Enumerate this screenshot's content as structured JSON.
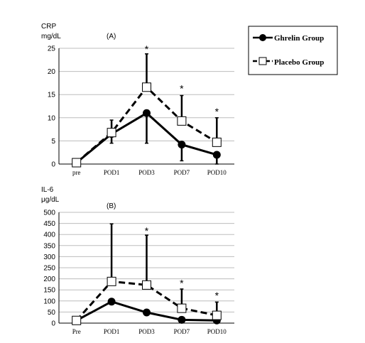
{
  "legend": {
    "entries": [
      {
        "label": "Ghrelin Group",
        "marker": "filled-circle",
        "line": "solid"
      },
      {
        "label": "Placebo Group",
        "marker": "open-square",
        "line": "dashed"
      }
    ]
  },
  "chart_data": [
    {
      "type": "line",
      "panel": "(A)",
      "ylabel_lines": [
        "CRP",
        "mg/dL"
      ],
      "categories": [
        "pre",
        "POD1",
        "POD3",
        "POD7",
        "POD10"
      ],
      "ylim": [
        0,
        25
      ],
      "yticks": [
        0,
        5,
        10,
        15,
        20,
        25
      ],
      "grid": "horizontal",
      "series": [
        {
          "name": "Ghrelin Group",
          "values": [
            0.3,
            6.5,
            11,
            4.2,
            2.0
          ],
          "err_low": [
            0,
            2,
            6.5,
            3.5,
            2.0
          ],
          "err_high": [
            0,
            0,
            0,
            0,
            0
          ],
          "color": "#000000"
        },
        {
          "name": "Placebo Group",
          "values": [
            0.3,
            6.8,
            16.6,
            9.3,
            4.7
          ],
          "err_low": [
            0,
            0,
            0,
            0,
            0
          ],
          "err_high": [
            0,
            2.7,
            7.2,
            5.5,
            5.3
          ],
          "color": "#000000"
        }
      ],
      "annotations": [
        {
          "category": "POD3",
          "y": 25,
          "text": "*"
        },
        {
          "category": "POD7",
          "y": 16.5,
          "text": "*"
        },
        {
          "category": "POD10",
          "y": 11.5,
          "text": "*"
        }
      ]
    },
    {
      "type": "line",
      "panel": "(B)",
      "ylabel_lines": [
        "IL-6",
        "μg/dL"
      ],
      "categories": [
        "Pre",
        "POD1",
        "POD3",
        "POD7",
        "POD10"
      ],
      "ylim": [
        0,
        500
      ],
      "yticks": [
        0,
        50,
        100,
        150,
        200,
        250,
        300,
        350,
        400,
        450,
        500
      ],
      "grid": "horizontal",
      "series": [
        {
          "name": "Ghrelin Group",
          "values": [
            12,
            97,
            48,
            15,
            12
          ],
          "err_low": [
            0,
            0,
            0,
            0,
            0
          ],
          "err_high": [
            0,
            0,
            0,
            0,
            0
          ],
          "color": "#000000"
        },
        {
          "name": "Placebo Group",
          "values": [
            12,
            188,
            172,
            67,
            35
          ],
          "err_low": [
            0,
            0,
            0,
            0,
            0
          ],
          "err_high": [
            0,
            260,
            225,
            87,
            60
          ],
          "color": "#000000"
        }
      ],
      "annotations": [
        {
          "category": "POD3",
          "y": 420,
          "text": "*"
        },
        {
          "category": "POD7",
          "y": 185,
          "text": "*"
        },
        {
          "category": "POD10",
          "y": 128,
          "text": "*"
        }
      ]
    }
  ]
}
